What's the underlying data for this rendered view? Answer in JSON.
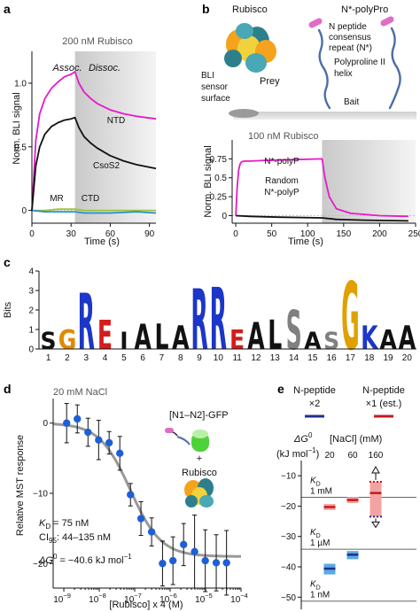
{
  "panels": {
    "a": {
      "letter": "a",
      "condition": "200 nM Rubisco",
      "assoc_label": "Assoc.",
      "dissoc_label": "Dissoc.",
      "ylabel": "Norm. BLI signal",
      "xlabel": "Time (s)"
    },
    "b": {
      "letter": "b",
      "schematic": {
        "rubisco": "Rubisco",
        "construct": "N*-polyPro",
        "bli_surface": "BLI sensor surface",
        "prey": "Prey",
        "consensus": [
          "N peptide",
          "consensus",
          "repeat (N*)"
        ],
        "polyproline": [
          "Polyproline II",
          "helix"
        ],
        "bait": "Bait"
      },
      "condition": "100 nM Rubisco",
      "ylabel": "Norm. BLI signal",
      "xlabel": "Time (s)"
    },
    "c": {
      "letter": "c",
      "ylabel": "Bits"
    },
    "d": {
      "letter": "d",
      "condition": "20 mM NaCl",
      "ylabel": "Relative MST response",
      "xlabel": "[Rubisco] x 4 (M)",
      "construct": "[N1–N2]-GFP",
      "plus": "+",
      "rubisco": "Rubisco",
      "kd_sym": "K",
      "kd_sub": "D",
      "kd_val": " = 75 nM",
      "ci_sym": "CI",
      "ci_sub": "95",
      "ci_val": ": 44–135 nM",
      "dg_sym": "ΔG",
      "dg_sup": "0",
      "dg_val": " = −40.6 kJ mol",
      "dg_unit_sup": "−1"
    },
    "e": {
      "letter": "e",
      "legend": [
        {
          "lines": [
            "N-peptide",
            "×2"
          ],
          "color": "#1f2f8a"
        },
        {
          "lines": [
            "N-peptide",
            "×1 (est.)"
          ],
          "color": "#c21b1b"
        }
      ],
      "dg_sym": "ΔG",
      "dg_sup": "0",
      "nacl_header": "[NaCl] (mM)",
      "unit": "(kJ mol",
      "unit_sup": "−1",
      "unit_end": ")",
      "kd_refs": [
        {
          "sym": "K",
          "sub": "D",
          "val": "1 mM",
          "dg": -17.1
        },
        {
          "sym": "K",
          "sub": "D",
          "val": "1 µM",
          "dg": -34.2
        },
        {
          "sym": "K",
          "sub": "D",
          "val": "1 nM",
          "dg": -51.3
        }
      ]
    }
  },
  "chart_data": [
    {
      "panel": "a",
      "type": "line",
      "xlabel": "Time (s)",
      "ylabel": "Norm. BLI signal",
      "xlim": [
        0,
        95
      ],
      "ylim": [
        -0.1,
        1.25
      ],
      "xticks": [
        0,
        30,
        60,
        90
      ],
      "yticks": [
        0,
        0.5,
        1.0
      ],
      "ytick_labels": [
        "0",
        "0.5",
        "1.0"
      ],
      "dissociation_start": 33,
      "series": [
        {
          "name": "NTD",
          "color": "#e619c8",
          "x": [
            0,
            3,
            6,
            10,
            15,
            20,
            25,
            30,
            33,
            36,
            40,
            45,
            50,
            60,
            70,
            80,
            95
          ],
          "y": [
            0,
            0.55,
            0.76,
            0.88,
            0.96,
            1.01,
            1.05,
            1.07,
            1.09,
            1.0,
            0.93,
            0.88,
            0.84,
            0.79,
            0.76,
            0.74,
            0.72
          ]
        },
        {
          "name": "CsoS2",
          "color": "#111111",
          "x": [
            0,
            3,
            6,
            10,
            15,
            20,
            25,
            30,
            33,
            36,
            40,
            45,
            50,
            60,
            70,
            80,
            95
          ],
          "y": [
            0,
            0.35,
            0.5,
            0.6,
            0.66,
            0.69,
            0.71,
            0.72,
            0.73,
            0.65,
            0.58,
            0.53,
            0.49,
            0.43,
            0.39,
            0.36,
            0.33
          ]
        },
        {
          "name": "MR",
          "color": "#9ac43a",
          "x": [
            0,
            10,
            20,
            30,
            33,
            40,
            60,
            80,
            95
          ],
          "y": [
            0,
            0.0,
            0.01,
            0.01,
            0.01,
            0.0,
            0.0,
            0.0,
            0.0
          ]
        },
        {
          "name": "CTD",
          "color": "#2a8fc9",
          "x": [
            0,
            10,
            20,
            30,
            33,
            40,
            60,
            80,
            95
          ],
          "y": [
            0,
            -0.01,
            -0.01,
            -0.01,
            -0.01,
            -0.02,
            -0.02,
            -0.01,
            -0.02
          ]
        }
      ]
    },
    {
      "panel": "b",
      "type": "line",
      "xlabel": "Time (s)",
      "ylabel": "Norm. BLI signal",
      "xlim": [
        -5,
        250
      ],
      "ylim": [
        -0.1,
        1.0
      ],
      "xticks": [
        0,
        50,
        100,
        150,
        200,
        250
      ],
      "yticks": [
        0,
        0.25,
        0.5,
        0.75
      ],
      "ytick_labels": [
        "0",
        "0.25",
        "0.5",
        "0.75"
      ],
      "dissociation_start": 120,
      "series": [
        {
          "name": "N*-polyP",
          "color": "#e619c8",
          "x": [
            0,
            2,
            4,
            6,
            8,
            12,
            20,
            40,
            80,
            120,
            124,
            130,
            140,
            160,
            200,
            240
          ],
          "y": [
            0,
            0.38,
            0.6,
            0.68,
            0.71,
            0.72,
            0.72,
            0.73,
            0.74,
            0.75,
            0.5,
            0.25,
            0.09,
            0.03,
            0.0,
            -0.01
          ]
        },
        {
          "name": "Random N*-polyP",
          "color": "#111111",
          "x": [
            0,
            20,
            60,
            120,
            140,
            180,
            240
          ],
          "y": [
            0,
            -0.01,
            -0.02,
            -0.03,
            -0.05,
            -0.06,
            -0.07
          ]
        }
      ]
    },
    {
      "panel": "c",
      "type": "sequence-logo",
      "ylabel": "Bits",
      "ylim": [
        0,
        4
      ],
      "yticks": [
        0,
        1,
        2,
        3,
        4
      ],
      "positions": [
        "1",
        "2",
        "3",
        "4",
        "5",
        "6",
        "7",
        "8",
        "9",
        "10",
        "11",
        "12",
        "13",
        "14",
        "15",
        "16",
        "17",
        "18",
        "19",
        "20"
      ],
      "main_letters": [
        "S",
        "G",
        "R",
        "E",
        "I",
        "A",
        "L",
        "A",
        "R",
        "R",
        "E",
        "A",
        "L",
        "S",
        "A",
        "S",
        "G",
        "K",
        "A",
        "A"
      ],
      "letter_heights": [
        0.9,
        1.0,
        2.9,
        1.5,
        0.9,
        1.3,
        1.3,
        1.2,
        3.1,
        3.2,
        1.0,
        1.4,
        1.5,
        2.0,
        0.9,
        0.9,
        3.5,
        1.2,
        1.0,
        1.2
      ],
      "letter_colors": [
        "#111111",
        "#e08a00",
        "#1b36c8",
        "#d41c1c",
        "#111111",
        "#111111",
        "#111111",
        "#111111",
        "#1b36c8",
        "#1b36c8",
        "#d41c1c",
        "#111111",
        "#111111",
        "#808080",
        "#111111",
        "#808080",
        "#e0a100",
        "#1b36c8",
        "#111111",
        "#111111"
      ]
    },
    {
      "panel": "d",
      "type": "scatter",
      "xlabel": "[Rubisco] x 4 (M)",
      "ylabel": "Relative MST response",
      "x_scale": "log",
      "xlim": [
        5e-10,
        0.0001
      ],
      "ylim": [
        -23.5,
        3.5
      ],
      "xticks": [
        1e-09,
        1e-08,
        1e-07,
        1e-06,
        1e-05,
        0.0001
      ],
      "xtick_labels": [
        "10−9",
        "10−8",
        "10−7",
        "10−6",
        "10−5",
        "10−4"
      ],
      "yticks": [
        0,
        -10,
        -20
      ],
      "ytick_labels": [
        "0",
        "−10",
        "−20"
      ],
      "points": [
        {
          "x": 1.2e-09,
          "y": 0.0,
          "err": 2.8
        },
        {
          "x": 2.4e-09,
          "y": 0.6,
          "err": 2.0
        },
        {
          "x": 4.8e-09,
          "y": -1.3,
          "err": 2.0
        },
        {
          "x": 9.6e-09,
          "y": -2.4,
          "err": 2.8
        },
        {
          "x": 1.9e-08,
          "y": -2.8,
          "err": 1.6
        },
        {
          "x": 3.8e-08,
          "y": -4.3,
          "err": 2.4
        },
        {
          "x": 7.6e-08,
          "y": -10.2,
          "err": 1.6
        },
        {
          "x": 1.5e-07,
          "y": -13.6,
          "err": 2.4
        },
        {
          "x": 3e-07,
          "y": -15.5,
          "err": 2.0
        },
        {
          "x": 6.1e-07,
          "y": -20.0,
          "err": 3.2
        },
        {
          "x": 1.2e-06,
          "y": -19.6,
          "err": 3.4
        },
        {
          "x": 2.4e-06,
          "y": -17.3,
          "err": 3.0
        },
        {
          "x": 4.9e-06,
          "y": -18.3,
          "err": 5.2
        },
        {
          "x": 9.8e-06,
          "y": -19.6,
          "err": 4.4
        },
        {
          "x": 2e-05,
          "y": -19.9,
          "err": 4.0
        },
        {
          "x": 3.9e-05,
          "y": -19.9,
          "err": 4.6
        }
      ],
      "fit": {
        "kd": 7.5e-08,
        "top": 0.0,
        "bottom": -19.0,
        "color": "#999999"
      },
      "point_color": "#1f5fd6"
    },
    {
      "panel": "e",
      "type": "range-bars",
      "ylabel": "ΔG0 (kJ mol−1)",
      "ylim": [
        -54,
        -5
      ],
      "yticks": [
        -10,
        -20,
        -30,
        -40,
        -50
      ],
      "ytick_labels": [
        "−10",
        "−20",
        "−30",
        "−40",
        "−50"
      ],
      "categories": [
        "20",
        "60",
        "160"
      ],
      "category_title": "[NaCl] (mM)",
      "series": [
        {
          "name": "N-peptide ×2",
          "color": "#1f2f8a",
          "fill": "#5aa9e6",
          "values": [
            -40.6,
            -36.0,
            null
          ],
          "low": [
            -42.5,
            -37.5,
            null
          ],
          "high": [
            -39.0,
            -34.8,
            null
          ]
        },
        {
          "name": "N-peptide ×1 (est.)",
          "color": "#c21b1b",
          "fill": "#f4a3a3",
          "values": [
            -20.3,
            -18.0,
            -15.7
          ],
          "low": [
            -21.3,
            -19.0,
            -23.5
          ],
          "high": [
            -19.3,
            -17.0,
            -12.0
          ]
        }
      ]
    }
  ]
}
